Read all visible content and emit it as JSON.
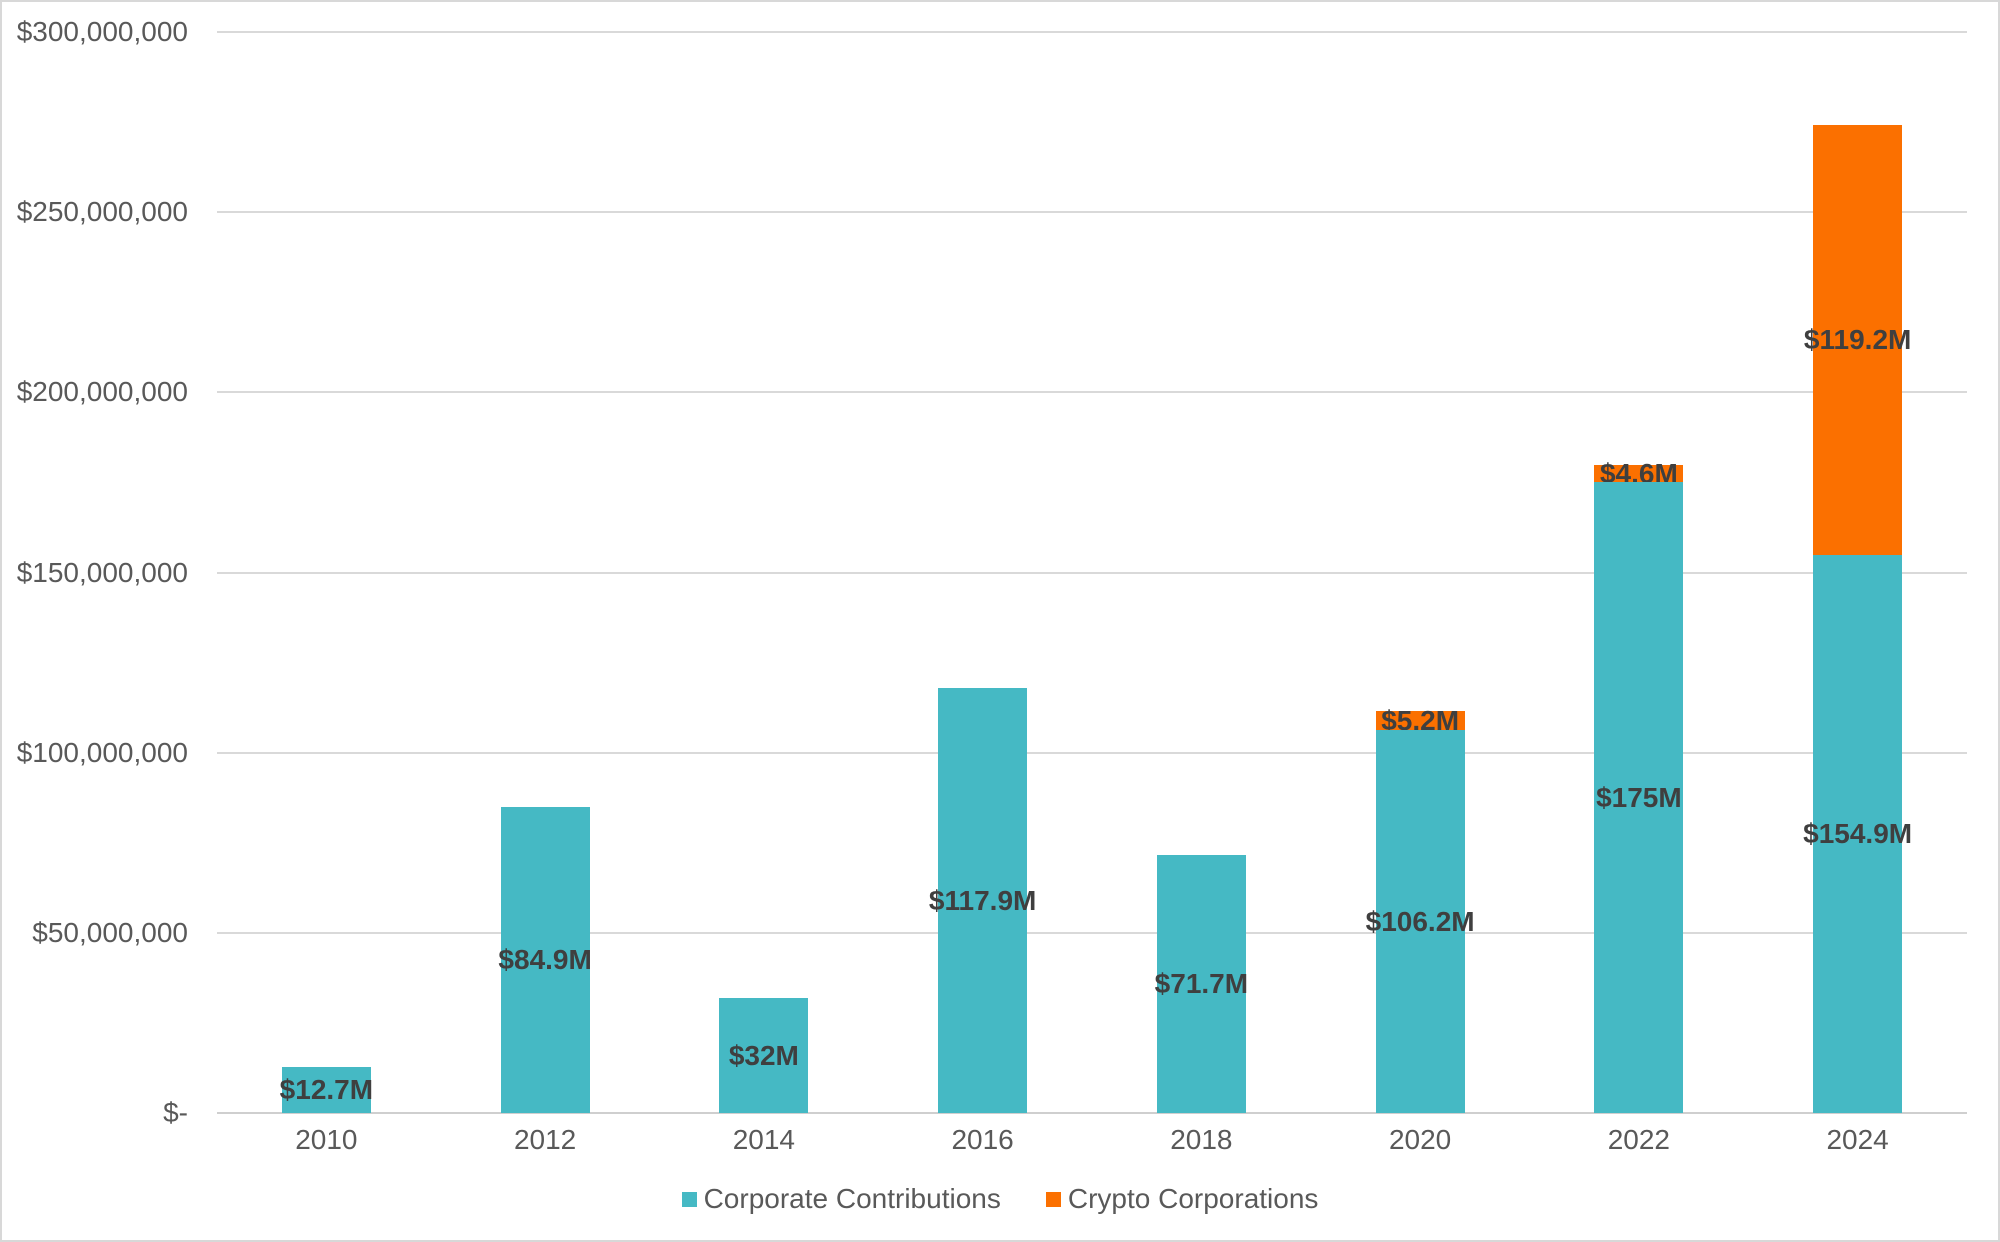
{
  "chart_data": {
    "type": "bar",
    "subtype": "stacked-column",
    "title": "",
    "xlabel": "",
    "ylabel": "",
    "categories": [
      "2010",
      "2012",
      "2014",
      "2016",
      "2018",
      "2020",
      "2022",
      "2024"
    ],
    "series": [
      {
        "name": "Corporate Contributions",
        "color": "#45b9c4",
        "values_millions": [
          12.7,
          84.9,
          32,
          117.9,
          71.7,
          106.2,
          175,
          154.9
        ],
        "data_labels": [
          "$12.7M",
          "$84.9M",
          "$32M",
          "$117.9M",
          "$71.7M",
          "$106.2M",
          "$175M",
          "$154.9M"
        ]
      },
      {
        "name": "Crypto Corporations",
        "color": "#fb7000",
        "values_millions": [
          0,
          0,
          0,
          0,
          0,
          5.2,
          4.6,
          119.2
        ],
        "data_labels": [
          "",
          "",
          "",
          "",
          "",
          "$5.2M",
          "$4.6M",
          "$119.2M"
        ]
      }
    ],
    "ylim_millions": [
      0,
      300
    ],
    "ytick_step_millions": 50,
    "ytick_labels": [
      "$-",
      "$50,000,000",
      "$100,000,000",
      "$150,000,000",
      "$200,000,000",
      "$250,000,000",
      "$300,000,000"
    ],
    "grid": true,
    "legend_position": "bottom"
  },
  "legend": {
    "items": [
      {
        "label": "Corporate Contributions",
        "color": "#45b9c4"
      },
      {
        "label": "Crypto Corporations",
        "color": "#fb7000"
      }
    ]
  },
  "colors": {
    "axis_text": "#595959",
    "data_label_text": "#3f3f3f",
    "gridline": "#d9d9d9",
    "background": "#ffffff",
    "border": "#d8d8d8"
  }
}
